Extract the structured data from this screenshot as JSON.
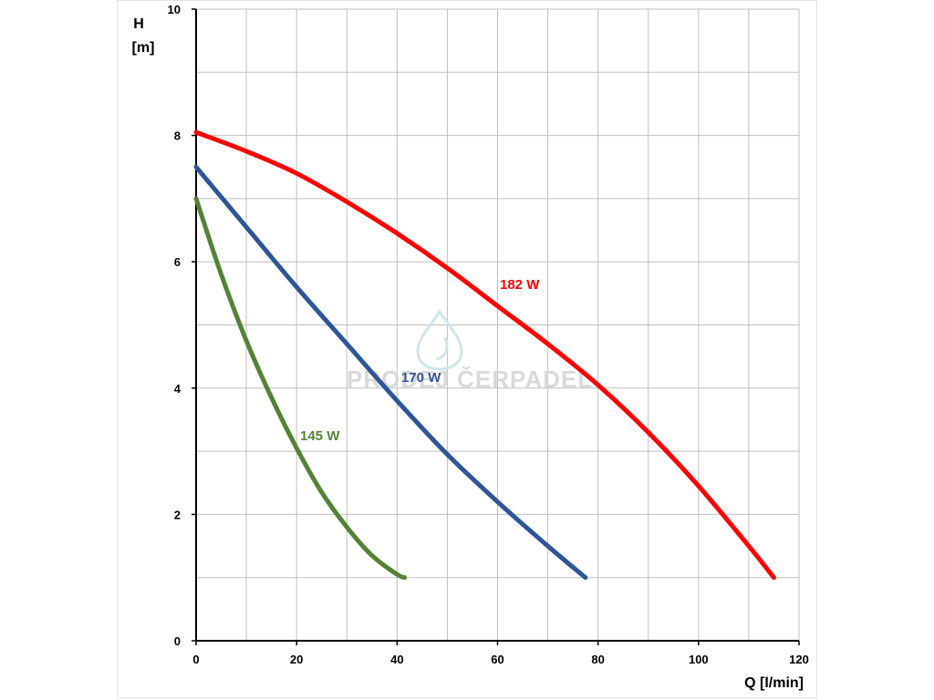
{
  "chart_data": {
    "type": "line",
    "title": "",
    "xlabel": "Q [l/min]",
    "ylabel_line1": "H",
    "ylabel_line2": "[m]",
    "xlim": [
      0,
      120
    ],
    "ylim": [
      0,
      10
    ],
    "xticks": [
      0,
      20,
      40,
      60,
      80,
      100,
      120
    ],
    "yticks": [
      0,
      2,
      4,
      6,
      8,
      10
    ],
    "grid": true,
    "legend": "none",
    "watermark": "PRODEJ ČERPADEL",
    "series": [
      {
        "name": "182 W",
        "color": "#ff0000",
        "x": [
          0,
          10,
          20,
          30,
          40,
          50,
          60,
          70,
          80,
          90,
          100,
          110,
          115
        ],
        "y": [
          8.05,
          7.75,
          7.4,
          6.95,
          6.45,
          5.9,
          5.3,
          4.7,
          4.05,
          3.3,
          2.45,
          1.5,
          1.0
        ]
      },
      {
        "name": "170 W",
        "color": "#2e5597",
        "x": [
          0,
          10,
          20,
          30,
          40,
          50,
          60,
          70,
          77.5
        ],
        "y": [
          7.5,
          6.55,
          5.6,
          4.7,
          3.8,
          2.95,
          2.2,
          1.5,
          1.0
        ]
      },
      {
        "name": "145 W",
        "color": "#548235",
        "x": [
          0,
          5,
          10,
          15,
          20,
          25,
          30,
          35,
          40,
          41.5
        ],
        "y": [
          7.0,
          5.8,
          4.75,
          3.85,
          3.05,
          2.35,
          1.8,
          1.35,
          1.05,
          1.0
        ]
      }
    ]
  }
}
